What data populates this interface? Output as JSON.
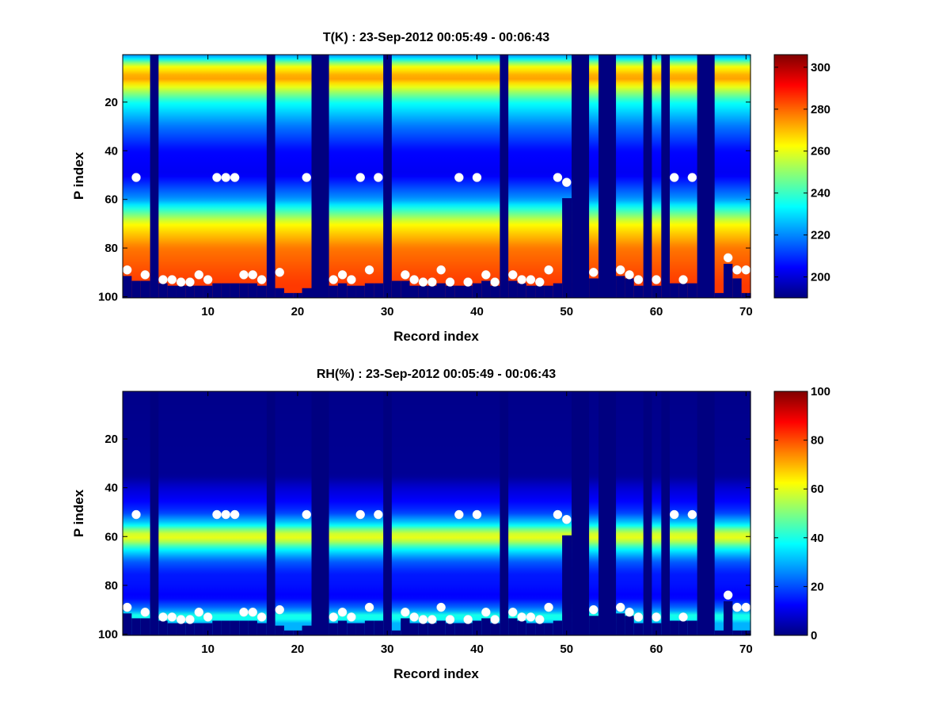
{
  "chart_data": [
    {
      "type": "heatmap",
      "title": "T(K) : 23-Sep-2012 00:05:49 - 00:06:43",
      "xlabel": "Record index",
      "ylabel": "P index",
      "xlim": [
        0.5,
        70.5
      ],
      "ylim": [
        100.5,
        0.5
      ],
      "y_reversed": true,
      "xticks": [
        10,
        20,
        30,
        40,
        50,
        60,
        70
      ],
      "yticks": [
        20,
        40,
        60,
        80,
        100
      ],
      "colorbar": {
        "min": 190,
        "max": 306,
        "ticks": [
          200,
          220,
          240,
          260,
          280,
          300
        ],
        "colormap": "jet"
      },
      "field_profile": {
        "p_index": [
          1,
          5,
          10,
          20,
          30,
          40,
          50,
          60,
          70,
          80,
          90,
          95
        ],
        "value": [
          220,
          260,
          275,
          235,
          218,
          205,
          203,
          222,
          262,
          278,
          283,
          285
        ]
      },
      "missing_columns": [
        4,
        17,
        22,
        23,
        30,
        43,
        51,
        52,
        54,
        55,
        59,
        61,
        65,
        66
      ],
      "fill_value": 190,
      "cutoff_p_index": [
        [
          1,
          91
        ],
        [
          2,
          93
        ],
        [
          3,
          93
        ],
        [
          5,
          94
        ],
        [
          6,
          95
        ],
        [
          7,
          95
        ],
        [
          8,
          95
        ],
        [
          9,
          95
        ],
        [
          10,
          95
        ],
        [
          11,
          94
        ],
        [
          12,
          94
        ],
        [
          13,
          94
        ],
        [
          14,
          94
        ],
        [
          15,
          94
        ],
        [
          16,
          95
        ],
        [
          18,
          96
        ],
        [
          19,
          98
        ],
        [
          20,
          98
        ],
        [
          21,
          96
        ],
        [
          24,
          95
        ],
        [
          25,
          94
        ],
        [
          26,
          95
        ],
        [
          27,
          95
        ],
        [
          28,
          94
        ],
        [
          29,
          94
        ],
        [
          31,
          93
        ],
        [
          32,
          93
        ],
        [
          33,
          95
        ],
        [
          34,
          95
        ],
        [
          35,
          95
        ],
        [
          36,
          94
        ],
        [
          37,
          95
        ],
        [
          38,
          95
        ],
        [
          39,
          95
        ],
        [
          40,
          94
        ],
        [
          41,
          93
        ],
        [
          42,
          95
        ],
        [
          44,
          93
        ],
        [
          45,
          94
        ],
        [
          46,
          95
        ],
        [
          47,
          95
        ],
        [
          48,
          95
        ],
        [
          49,
          94
        ],
        [
          50,
          59
        ],
        [
          53,
          92
        ],
        [
          56,
          91
        ],
        [
          57,
          92
        ],
        [
          58,
          95
        ],
        [
          60,
          95
        ],
        [
          62,
          94
        ],
        [
          63,
          94
        ],
        [
          64,
          94
        ],
        [
          67,
          98
        ],
        [
          68,
          86
        ],
        [
          69,
          92
        ],
        [
          70,
          98
        ]
      ],
      "markers": [
        [
          1,
          89
        ],
        [
          2,
          51
        ],
        [
          3,
          91
        ],
        [
          5,
          93
        ],
        [
          6,
          93
        ],
        [
          7,
          94
        ],
        [
          8,
          94
        ],
        [
          9,
          91
        ],
        [
          10,
          93
        ],
        [
          11,
          51
        ],
        [
          12,
          51
        ],
        [
          13,
          51
        ],
        [
          14,
          91
        ],
        [
          15,
          91
        ],
        [
          16,
          93
        ],
        [
          18,
          90
        ],
        [
          21,
          51
        ],
        [
          24,
          93
        ],
        [
          25,
          91
        ],
        [
          26,
          93
        ],
        [
          27,
          51
        ],
        [
          28,
          89
        ],
        [
          29,
          51
        ],
        [
          32,
          91
        ],
        [
          33,
          93
        ],
        [
          34,
          94
        ],
        [
          35,
          94
        ],
        [
          36,
          89
        ],
        [
          37,
          94
        ],
        [
          38,
          51
        ],
        [
          39,
          94
        ],
        [
          40,
          51
        ],
        [
          41,
          91
        ],
        [
          42,
          94
        ],
        [
          44,
          91
        ],
        [
          45,
          93
        ],
        [
          46,
          93
        ],
        [
          47,
          94
        ],
        [
          48,
          89
        ],
        [
          49,
          51
        ],
        [
          50,
          53
        ],
        [
          53,
          90
        ],
        [
          56,
          89
        ],
        [
          57,
          91
        ],
        [
          58,
          93
        ],
        [
          60,
          93
        ],
        [
          62,
          51
        ],
        [
          63,
          93
        ],
        [
          64,
          51
        ],
        [
          68,
          84
        ],
        [
          69,
          89
        ],
        [
          70,
          89
        ]
      ]
    },
    {
      "type": "heatmap",
      "title": "RH(%) : 23-Sep-2012 00:05:49 - 00:06:43",
      "xlabel": "Record index",
      "ylabel": "P index",
      "xlim": [
        0.5,
        70.5
      ],
      "ylim": [
        100.5,
        0.5
      ],
      "y_reversed": true,
      "xticks": [
        10,
        20,
        30,
        40,
        50,
        60,
        70
      ],
      "yticks": [
        20,
        40,
        60,
        80,
        100
      ],
      "colorbar": {
        "min": 0,
        "max": 100,
        "ticks": [
          0,
          20,
          40,
          60,
          80,
          100
        ],
        "colormap": "jet"
      },
      "field_profile": {
        "p_index": [
          1,
          35,
          40,
          45,
          50,
          55,
          58,
          60,
          62,
          65,
          70,
          75,
          80,
          85,
          90,
          93,
          95
        ],
        "value": [
          1,
          2,
          8,
          12,
          18,
          35,
          55,
          62,
          55,
          38,
          22,
          15,
          14,
          12,
          25,
          45,
          30
        ]
      },
      "missing_columns": [
        4,
        17,
        22,
        23,
        30,
        43,
        51,
        52,
        54,
        55,
        59,
        61,
        65,
        66
      ],
      "fill_value": 0,
      "cutoff_p_index": [
        [
          1,
          91
        ],
        [
          2,
          93
        ],
        [
          3,
          93
        ],
        [
          5,
          94
        ],
        [
          6,
          95
        ],
        [
          7,
          95
        ],
        [
          8,
          95
        ],
        [
          9,
          95
        ],
        [
          10,
          95
        ],
        [
          11,
          94
        ],
        [
          12,
          94
        ],
        [
          13,
          94
        ],
        [
          14,
          94
        ],
        [
          15,
          94
        ],
        [
          16,
          95
        ],
        [
          18,
          96
        ],
        [
          19,
          98
        ],
        [
          20,
          98
        ],
        [
          21,
          96
        ],
        [
          24,
          95
        ],
        [
          25,
          94
        ],
        [
          26,
          95
        ],
        [
          27,
          95
        ],
        [
          28,
          94
        ],
        [
          29,
          94
        ],
        [
          31,
          98
        ],
        [
          32,
          93
        ],
        [
          33,
          95
        ],
        [
          34,
          95
        ],
        [
          35,
          95
        ],
        [
          36,
          94
        ],
        [
          37,
          95
        ],
        [
          38,
          95
        ],
        [
          39,
          95
        ],
        [
          40,
          94
        ],
        [
          41,
          93
        ],
        [
          42,
          95
        ],
        [
          44,
          93
        ],
        [
          45,
          94
        ],
        [
          46,
          95
        ],
        [
          47,
          95
        ],
        [
          48,
          95
        ],
        [
          49,
          94
        ],
        [
          50,
          59
        ],
        [
          53,
          92
        ],
        [
          56,
          91
        ],
        [
          57,
          92
        ],
        [
          58,
          95
        ],
        [
          60,
          95
        ],
        [
          62,
          94
        ],
        [
          63,
          94
        ],
        [
          64,
          94
        ],
        [
          67,
          98
        ],
        [
          68,
          86
        ],
        [
          69,
          98
        ],
        [
          70,
          98
        ]
      ],
      "markers": [
        [
          1,
          89
        ],
        [
          2,
          51
        ],
        [
          3,
          91
        ],
        [
          5,
          93
        ],
        [
          6,
          93
        ],
        [
          7,
          94
        ],
        [
          8,
          94
        ],
        [
          9,
          91
        ],
        [
          10,
          93
        ],
        [
          11,
          51
        ],
        [
          12,
          51
        ],
        [
          13,
          51
        ],
        [
          14,
          91
        ],
        [
          15,
          91
        ],
        [
          16,
          93
        ],
        [
          18,
          90
        ],
        [
          21,
          51
        ],
        [
          24,
          93
        ],
        [
          25,
          91
        ],
        [
          26,
          93
        ],
        [
          27,
          51
        ],
        [
          28,
          89
        ],
        [
          29,
          51
        ],
        [
          32,
          91
        ],
        [
          33,
          93
        ],
        [
          34,
          94
        ],
        [
          35,
          94
        ],
        [
          36,
          89
        ],
        [
          37,
          94
        ],
        [
          38,
          51
        ],
        [
          39,
          94
        ],
        [
          40,
          51
        ],
        [
          41,
          91
        ],
        [
          42,
          94
        ],
        [
          44,
          91
        ],
        [
          45,
          93
        ],
        [
          46,
          93
        ],
        [
          47,
          94
        ],
        [
          48,
          89
        ],
        [
          49,
          51
        ],
        [
          50,
          53
        ],
        [
          53,
          90
        ],
        [
          56,
          89
        ],
        [
          57,
          91
        ],
        [
          58,
          93
        ],
        [
          60,
          93
        ],
        [
          62,
          51
        ],
        [
          63,
          93
        ],
        [
          64,
          51
        ],
        [
          68,
          84
        ],
        [
          69,
          89
        ],
        [
          70,
          89
        ]
      ]
    }
  ],
  "marker_color": "#ffffff",
  "axes_color": "#000000"
}
